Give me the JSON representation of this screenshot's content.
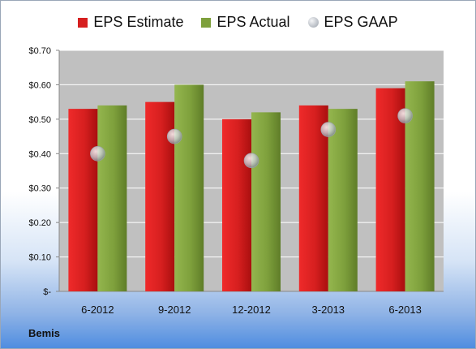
{
  "chart_data": {
    "type": "bar",
    "categories": [
      "6-2012",
      "9-2012",
      "12-2012",
      "3-2013",
      "6-2013"
    ],
    "series": [
      {
        "name": "EPS Estimate",
        "kind": "bar",
        "color": "#d61f1f",
        "values": [
          0.53,
          0.55,
          0.5,
          0.54,
          0.59
        ]
      },
      {
        "name": "EPS Actual",
        "kind": "bar",
        "color": "#7ea03c",
        "values": [
          0.54,
          0.6,
          0.52,
          0.53,
          0.61
        ]
      },
      {
        "name": "EPS GAAP",
        "kind": "marker",
        "color": "#c8ccd3",
        "values": [
          0.4,
          0.45,
          0.38,
          0.47,
          0.51
        ]
      }
    ],
    "yticks": [
      {
        "value": 0.7,
        "label": "$0.70"
      },
      {
        "value": 0.6,
        "label": "$0.60"
      },
      {
        "value": 0.5,
        "label": "$0.50"
      },
      {
        "value": 0.4,
        "label": "$0.40"
      },
      {
        "value": 0.3,
        "label": "$0.30"
      },
      {
        "value": 0.2,
        "label": "$0.20"
      },
      {
        "value": 0.1,
        "label": "$0.10"
      },
      {
        "value": 0.0,
        "label": "$-"
      }
    ],
    "ylim": [
      0,
      0.7
    ],
    "grid": true,
    "legend_position": "top",
    "plot_background": "#c0c0c0"
  },
  "brand_label": "Bemis"
}
